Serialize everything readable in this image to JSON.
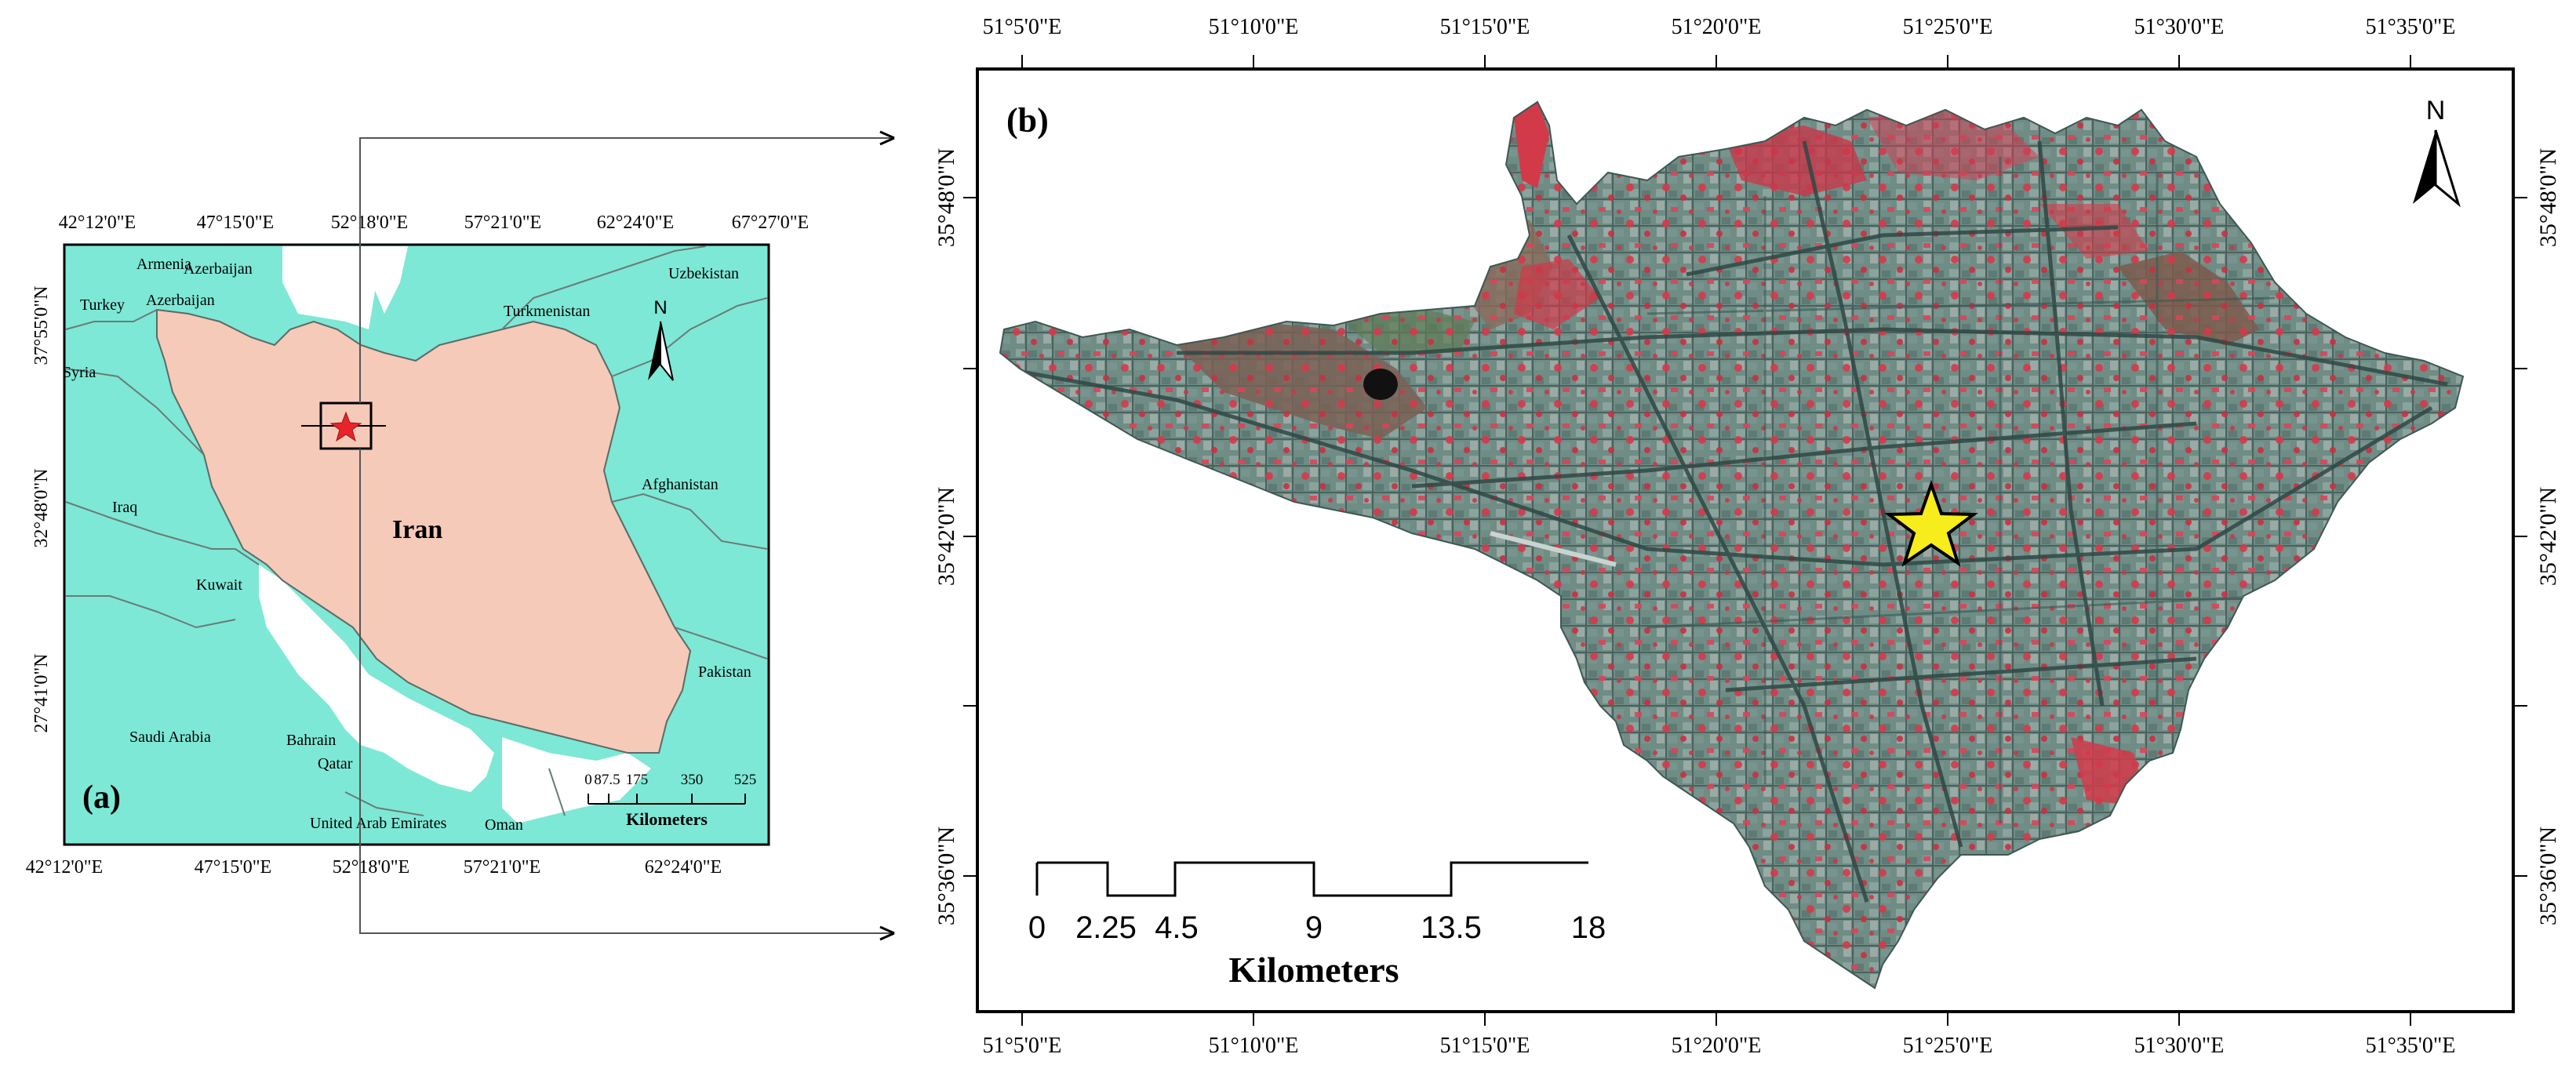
{
  "panel_a": {
    "label": "(a)",
    "top_ticks": [
      "42°12'0\"E",
      "47°15'0\"E",
      "52°18'0\"E",
      "57°21'0\"E",
      "62°24'0\"E",
      "67°27'0\"E"
    ],
    "bottom_ticks": [
      "42°12'0\"E",
      "47°15'0\"E",
      "52°18'0\"E",
      "57°21'0\"E",
      "62°24'0\"E"
    ],
    "left_ticks": [
      "37°55'0\"N",
      "32°48'0\"N",
      "27°41'0\"N"
    ],
    "countries": {
      "iran": "Iran",
      "armenia": "Armenia",
      "azerbaijan_1": "Azerbaijan",
      "azerbaijan_2": "Azerbaijan",
      "turkey": "Turkey",
      "syria": "Syria",
      "iraq": "Iraq",
      "kuwait": "Kuwait",
      "saudi_arabia": "Saudi Arabia",
      "bahrain": "Bahrain",
      "qatar": "Qatar",
      "uae": "United Arab Emirates",
      "oman": "Oman",
      "turkmenistan": "Turkmenistan",
      "uzbekistan": "Uzbekistan",
      "afghanistan": "Afghanistan",
      "pakistan": "Pakistan"
    },
    "scale_ticks": [
      "0",
      "87.5",
      "175",
      "350",
      "525"
    ],
    "scale_unit": "Kilometers",
    "north": "N",
    "colors": {
      "sea": "#7de8d6",
      "iran": "#f5cab8",
      "land": "#ffffff",
      "marker": "#e8232a"
    }
  },
  "panel_b": {
    "label": "(b)",
    "top_ticks": [
      "51°5'0\"E",
      "51°10'0\"E",
      "51°15'0\"E",
      "51°20'0\"E",
      "51°25'0\"E",
      "51°30'0\"E",
      "51°35'0\"E"
    ],
    "bottom_ticks": [
      "51°5'0\"E",
      "51°10'0\"E",
      "51°15'0\"E",
      "51°20'0\"E",
      "51°25'0\"E",
      "51°30'0\"E",
      "51°35'0\"E"
    ],
    "left_ticks": [
      "35°48'0\"N",
      "35°42'0\"N",
      "35°36'0\"N"
    ],
    "right_ticks": [
      "35°48'0\"N",
      "35°42'0\"N",
      "35°36'0\"N"
    ],
    "scale_ticks": [
      "0",
      "2.25",
      "4.5",
      "9",
      "13.5",
      "18"
    ],
    "scale_unit": "Kilometers",
    "north": "N",
    "colors": {
      "urban": "#6f8c85",
      "vegetation": "#d23a4a",
      "bare": "#7a6055",
      "star": "#f7ec1c"
    }
  }
}
